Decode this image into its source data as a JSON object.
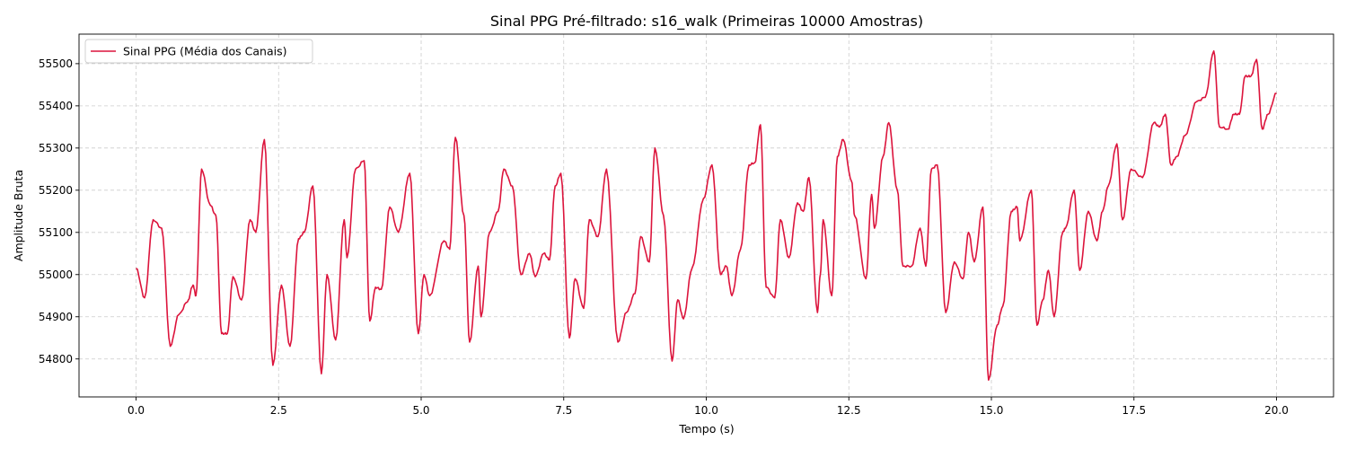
{
  "chart_data": {
    "type": "line",
    "title": "Sinal PPG Pré-filtrado: s16_walk (Primeiras 10000 Amostras)",
    "xlabel": "Tempo (s)",
    "ylabel": "Amplitude Bruta",
    "xlim": [
      -1.0,
      21.0
    ],
    "ylim": [
      54710,
      55570
    ],
    "xticks": [
      0.0,
      2.5,
      5.0,
      7.5,
      10.0,
      12.5,
      15.0,
      17.5,
      20.0
    ],
    "xtick_labels": [
      "0.0",
      "2.5",
      "5.0",
      "7.5",
      "10.0",
      "12.5",
      "15.0",
      "17.5",
      "20.0"
    ],
    "yticks": [
      54800,
      54900,
      55000,
      55100,
      55200,
      55300,
      55400,
      55500
    ],
    "ytick_labels": [
      "54800",
      "54900",
      "55000",
      "55100",
      "55200",
      "55300",
      "55400",
      "55500"
    ],
    "grid": true,
    "legend": {
      "position": "top-left"
    },
    "series": [
      {
        "name": "Sinal PPG (Média dos Canais)",
        "color": "#dc143c",
        "points": [
          [
            0.0,
            55015
          ],
          [
            0.15,
            54945
          ],
          [
            0.3,
            55130
          ],
          [
            0.45,
            55110
          ],
          [
            0.6,
            54830
          ],
          [
            0.75,
            54905
          ],
          [
            0.9,
            54935
          ],
          [
            1.0,
            54975
          ],
          [
            1.05,
            54950
          ],
          [
            1.15,
            55250
          ],
          [
            1.3,
            55165
          ],
          [
            1.4,
            55140
          ],
          [
            1.5,
            54860
          ],
          [
            1.6,
            54860
          ],
          [
            1.7,
            54995
          ],
          [
            1.85,
            54940
          ],
          [
            2.0,
            55130
          ],
          [
            2.1,
            55100
          ],
          [
            2.25,
            55320
          ],
          [
            2.4,
            54785
          ],
          [
            2.55,
            54975
          ],
          [
            2.7,
            54830
          ],
          [
            2.85,
            55085
          ],
          [
            2.95,
            55100
          ],
          [
            3.1,
            55210
          ],
          [
            3.25,
            54765
          ],
          [
            3.35,
            55000
          ],
          [
            3.5,
            54845
          ],
          [
            3.65,
            55130
          ],
          [
            3.7,
            55040
          ],
          [
            3.85,
            55250
          ],
          [
            4.0,
            55270
          ],
          [
            4.1,
            54890
          ],
          [
            4.2,
            54970
          ],
          [
            4.3,
            54965
          ],
          [
            4.45,
            55160
          ],
          [
            4.6,
            55100
          ],
          [
            4.8,
            55240
          ],
          [
            4.95,
            54860
          ],
          [
            5.05,
            55000
          ],
          [
            5.15,
            54950
          ],
          [
            5.4,
            55080
          ],
          [
            5.5,
            55060
          ],
          [
            5.6,
            55325
          ],
          [
            5.75,
            55140
          ],
          [
            5.85,
            54840
          ],
          [
            6.0,
            55020
          ],
          [
            6.05,
            54900
          ],
          [
            6.2,
            55100
          ],
          [
            6.35,
            55150
          ],
          [
            6.45,
            55250
          ],
          [
            6.6,
            55210
          ],
          [
            6.75,
            55000
          ],
          [
            6.9,
            55050
          ],
          [
            7.0,
            54995
          ],
          [
            7.15,
            55050
          ],
          [
            7.25,
            55035
          ],
          [
            7.35,
            55210
          ],
          [
            7.45,
            55240
          ],
          [
            7.6,
            54850
          ],
          [
            7.7,
            54990
          ],
          [
            7.85,
            54920
          ],
          [
            7.95,
            55130
          ],
          [
            8.1,
            55090
          ],
          [
            8.25,
            55250
          ],
          [
            8.45,
            54840
          ],
          [
            8.6,
            54910
          ],
          [
            8.75,
            54955
          ],
          [
            8.85,
            55090
          ],
          [
            9.0,
            55030
          ],
          [
            9.1,
            55300
          ],
          [
            9.25,
            55140
          ],
          [
            9.4,
            54795
          ],
          [
            9.5,
            54940
          ],
          [
            9.6,
            54895
          ],
          [
            9.75,
            55015
          ],
          [
            9.95,
            55180
          ],
          [
            10.1,
            55260
          ],
          [
            10.25,
            55000
          ],
          [
            10.35,
            55020
          ],
          [
            10.45,
            54950
          ],
          [
            10.6,
            55060
          ],
          [
            10.75,
            55260
          ],
          [
            10.85,
            55265
          ],
          [
            10.95,
            55355
          ],
          [
            11.05,
            54970
          ],
          [
            11.2,
            54945
          ],
          [
            11.3,
            55130
          ],
          [
            11.45,
            55040
          ],
          [
            11.6,
            55170
          ],
          [
            11.7,
            55150
          ],
          [
            11.8,
            55230
          ],
          [
            11.95,
            54910
          ],
          [
            12.0,
            55000
          ],
          [
            12.05,
            55130
          ],
          [
            12.2,
            54950
          ],
          [
            12.3,
            55280
          ],
          [
            12.4,
            55320
          ],
          [
            12.55,
            55220
          ],
          [
            12.6,
            55140
          ],
          [
            12.8,
            54990
          ],
          [
            12.9,
            55190
          ],
          [
            12.95,
            55110
          ],
          [
            13.1,
            55280
          ],
          [
            13.2,
            55360
          ],
          [
            13.35,
            55200
          ],
          [
            13.45,
            55020
          ],
          [
            13.6,
            55020
          ],
          [
            13.75,
            55110
          ],
          [
            13.85,
            55020
          ],
          [
            13.95,
            55250
          ],
          [
            14.05,
            55260
          ],
          [
            14.2,
            54910
          ],
          [
            14.35,
            55030
          ],
          [
            14.5,
            54990
          ],
          [
            14.6,
            55100
          ],
          [
            14.7,
            55030
          ],
          [
            14.85,
            55160
          ],
          [
            14.95,
            54750
          ],
          [
            15.1,
            54880
          ],
          [
            15.2,
            54925
          ],
          [
            15.35,
            55150
          ],
          [
            15.45,
            55160
          ],
          [
            15.5,
            55080
          ],
          [
            15.7,
            55200
          ],
          [
            15.8,
            54880
          ],
          [
            15.9,
            54940
          ],
          [
            16.0,
            55010
          ],
          [
            16.1,
            54900
          ],
          [
            16.25,
            55100
          ],
          [
            16.3,
            55110
          ],
          [
            16.45,
            55200
          ],
          [
            16.55,
            55010
          ],
          [
            16.7,
            55150
          ],
          [
            16.85,
            55080
          ],
          [
            16.95,
            55150
          ],
          [
            17.05,
            55210
          ],
          [
            17.2,
            55310
          ],
          [
            17.3,
            55130
          ],
          [
            17.45,
            55250
          ],
          [
            17.65,
            55230
          ],
          [
            17.85,
            55360
          ],
          [
            17.95,
            55350
          ],
          [
            18.05,
            55380
          ],
          [
            18.15,
            55260
          ],
          [
            18.25,
            55280
          ],
          [
            18.4,
            55330
          ],
          [
            18.6,
            55410
          ],
          [
            18.75,
            55420
          ],
          [
            18.9,
            55530
          ],
          [
            19.0,
            55350
          ],
          [
            19.15,
            55345
          ],
          [
            19.25,
            55380
          ],
          [
            19.35,
            55380
          ],
          [
            19.45,
            55470
          ],
          [
            19.55,
            55470
          ],
          [
            19.65,
            55510
          ],
          [
            19.75,
            55345
          ],
          [
            19.85,
            55380
          ],
          [
            20.0,
            55430
          ]
        ]
      }
    ]
  }
}
